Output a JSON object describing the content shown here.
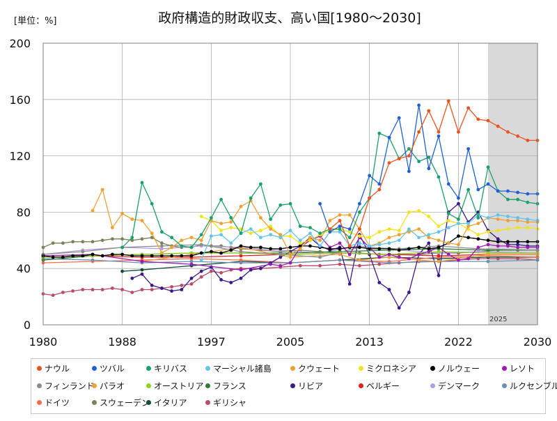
{
  "chart_data": {
    "type": "line",
    "title": "政府構造的財政収支、高い国[1980～2030]",
    "unit_label": "[単位：%]",
    "xlabel": "",
    "ylabel": "",
    "xlim": [
      1980,
      2030
    ],
    "ylim": [
      0,
      200
    ],
    "x_ticks": [
      1980,
      1988,
      1997,
      2005,
      2013,
      2022,
      2030
    ],
    "y_ticks": [
      0,
      40,
      80,
      120,
      160,
      200
    ],
    "forecast_start": 2025,
    "forecast_label": "2025",
    "grid": true,
    "legend_position": "bottom",
    "series": [
      {
        "name": "ナウル",
        "color": "#e8531f",
        "x": [
          2009,
          2010,
          2011,
          2012,
          2013,
          2014,
          2015,
          2016,
          2017,
          2018,
          2019,
          2020,
          2021,
          2022,
          2023,
          2024,
          2025,
          2026,
          2027,
          2028,
          2029,
          2030
        ],
        "values": [
          68,
          74,
          56,
          68,
          90,
          96,
          115,
          118,
          120,
          137,
          152,
          137,
          159,
          137,
          154,
          146,
          145,
          141,
          137,
          134,
          131,
          131
        ]
      },
      {
        "name": "ツバル",
        "color": "#1f5fd6",
        "x": [
          2008,
          2009,
          2010,
          2011,
          2012,
          2013,
          2014,
          2015,
          2016,
          2017,
          2018,
          2019,
          2020,
          2021,
          2022,
          2023,
          2024,
          2025,
          2026,
          2027,
          2028,
          2029,
          2030
        ],
        "values": [
          86,
          66,
          70,
          68,
          86,
          106,
          100,
          133,
          147,
          109,
          156,
          111,
          134,
          100,
          90,
          125,
          96,
          100,
          95,
          95,
          94,
          93,
          93
        ]
      },
      {
        "name": "キリバス",
        "color": "#1aa06a",
        "x": [
          1988,
          1989,
          1990,
          1991,
          1992,
          1993,
          1994,
          1995,
          1996,
          1997,
          1998,
          1999,
          2000,
          2001,
          2002,
          2003,
          2004,
          2005,
          2006,
          2007,
          2008,
          2009,
          2010,
          2011,
          2012,
          2013,
          2014,
          2015,
          2016,
          2017,
          2018,
          2019,
          2020,
          2021,
          2022,
          2023,
          2024,
          2025,
          2026,
          2027,
          2028,
          2029,
          2030
        ],
        "values": [
          55,
          62,
          101,
          86,
          66,
          62,
          56,
          55,
          64,
          76,
          89,
          76,
          65,
          90,
          100,
          75,
          85,
          86,
          70,
          69,
          65,
          68,
          68,
          62,
          80,
          90,
          136,
          133,
          118,
          125,
          116,
          119,
          105,
          79,
          75,
          96,
          76,
          112,
          95,
          89,
          89,
          87,
          86
        ]
      },
      {
        "name": "マーシャル諸島",
        "color": "#62c4ec",
        "x": [
          1996,
          1997,
          1998,
          1999,
          2000,
          2001,
          2002,
          2003,
          2004,
          2005,
          2006,
          2007,
          2008,
          2009,
          2010,
          2011,
          2012,
          2013,
          2014,
          2015,
          2016,
          2017,
          2018,
          2019,
          2020,
          2021,
          2022,
          2023,
          2024,
          2025,
          2026,
          2027,
          2028,
          2029,
          2030
        ],
        "values": [
          46,
          63,
          64,
          58,
          65,
          68,
          62,
          64,
          62,
          67,
          60,
          65,
          56,
          66,
          66,
          56,
          58,
          56,
          57,
          58,
          60,
          68,
          62,
          64,
          66,
          69,
          72,
          72,
          78,
          76,
          78,
          77,
          76,
          75,
          74
        ]
      },
      {
        "name": "クウェート",
        "color": "#f0a030",
        "x": [
          1985,
          1986,
          1987,
          1988,
          1989,
          1990,
          1991,
          1992,
          1993,
          1994,
          1995,
          1996,
          1997,
          1998,
          1999,
          2000,
          2001,
          2002,
          2003,
          2004,
          2005,
          2006,
          2007,
          2008,
          2009,
          2010,
          2011,
          2012,
          2013,
          2014,
          2015,
          2016,
          2017,
          2018,
          2019,
          2020,
          2021,
          2022,
          2023,
          2024,
          2025,
          2026,
          2027,
          2028,
          2029,
          2030
        ],
        "values": [
          81,
          96,
          69,
          79,
          75,
          74,
          65,
          51,
          55,
          60,
          62,
          60,
          74,
          72,
          73,
          84,
          88,
          76,
          68,
          64,
          50,
          54,
          62,
          60,
          74,
          78,
          78,
          68,
          56,
          58,
          62,
          64,
          66,
          68,
          62,
          60,
          58,
          57,
          70,
          72,
          76,
          75,
          74,
          74,
          73,
          73
        ]
      },
      {
        "name": "ミクロネシア",
        "color": "#f2e21c",
        "x": [
          1996,
          1997,
          1998,
          1999,
          2000,
          2001,
          2002,
          2003,
          2004,
          2005,
          2006,
          2007,
          2008,
          2009,
          2010,
          2011,
          2012,
          2013,
          2014,
          2015,
          2016,
          2017,
          2018,
          2019,
          2020,
          2021,
          2022,
          2023,
          2024,
          2025,
          2026,
          2027,
          2028,
          2029,
          2030
        ],
        "values": [
          77,
          74,
          67,
          69,
          68,
          65,
          67,
          70,
          63,
          63,
          58,
          60,
          64,
          67,
          68,
          66,
          63,
          62,
          66,
          68,
          67,
          80,
          81,
          77,
          70,
          74,
          72,
          68,
          64,
          66,
          67,
          68,
          69,
          69,
          68
        ]
      },
      {
        "name": "ノルウェー",
        "color": "#000000",
        "x": [
          1980,
          1981,
          1982,
          1983,
          1984,
          1985,
          1986,
          1987,
          1988,
          1989,
          1990,
          1991,
          1992,
          1993,
          1994,
          1995,
          1996,
          1997,
          1998,
          1999,
          2000,
          2001,
          2002,
          2003,
          2004,
          2005,
          2006,
          2007,
          2008,
          2009,
          2010,
          2011,
          2012,
          2013,
          2014,
          2015,
          2016,
          2017,
          2018,
          2019,
          2020,
          2021,
          2022,
          2023,
          2024,
          2025,
          2026,
          2027,
          2028,
          2029,
          2030
        ],
        "values": [
          49,
          48,
          48,
          49,
          49,
          50,
          49,
          50,
          50,
          49,
          49,
          49,
          49,
          49,
          49,
          49,
          51,
          52,
          51,
          53,
          56,
          55,
          55,
          54,
          54,
          55,
          56,
          56,
          55,
          54,
          54,
          55,
          55,
          54,
          54,
          54,
          53,
          54,
          55,
          54,
          55,
          58,
          63,
          62,
          61,
          60,
          59,
          59,
          59,
          59,
          59
        ]
      },
      {
        "name": "レソト",
        "color": "#9b1bb0",
        "x": [
          1980,
          1985,
          1990,
          1995,
          2000,
          2003,
          2004,
          2005,
          2006,
          2007,
          2008,
          2009,
          2010,
          2011,
          2012,
          2013,
          2014,
          2015,
          2016,
          2017,
          2018,
          2019,
          2020,
          2021,
          2022,
          2023,
          2024,
          2025,
          2026,
          2027,
          2028,
          2029,
          2030
        ],
        "values": [
          49,
          50,
          45,
          43,
          39,
          43,
          42,
          44,
          55,
          60,
          63,
          55,
          58,
          50,
          62,
          55,
          48,
          50,
          48,
          47,
          50,
          52,
          55,
          50,
          46,
          47,
          55,
          57,
          56,
          56,
          55,
          55,
          55
        ]
      },
      {
        "name": "フィンランド",
        "color": "#8c8c8c",
        "x": [
          1980,
          1984,
          1988,
          1992,
          1996,
          2000,
          2004,
          2008,
          2012,
          2016,
          2020,
          2024,
          2030
        ],
        "values": [
          50,
          52,
          55,
          56,
          57,
          52,
          50,
          48,
          55,
          54,
          56,
          54,
          53
        ]
      },
      {
        "name": "パラオ",
        "color": "#f0a040",
        "x": [
          1990,
          1995,
          2000,
          2005,
          2010,
          2012,
          2015,
          2018,
          2020,
          2022,
          2025,
          2030
        ],
        "values": [
          45,
          50,
          55,
          48,
          50,
          46,
          48,
          46,
          45,
          47,
          50,
          50
        ]
      },
      {
        "name": "オーストリア",
        "color": "#8fd020",
        "x": [
          1980,
          1985,
          1990,
          1995,
          2000,
          2005,
          2010,
          2015,
          2020,
          2025,
          2030
        ],
        "values": [
          48,
          49,
          50,
          51,
          51,
          50,
          51,
          50,
          52,
          51,
          51
        ]
      },
      {
        "name": "フランス",
        "color": "#2e7d32",
        "x": [
          1980,
          1985,
          1990,
          1995,
          2000,
          2005,
          2010,
          2015,
          2020,
          2025,
          2030
        ],
        "values": [
          46,
          49,
          50,
          51,
          51,
          51,
          52,
          53,
          54,
          53,
          53
        ]
      },
      {
        "name": "リビア",
        "color": "#3a1a8a",
        "x": [
          1989,
          1990,
          1991,
          1992,
          1993,
          1994,
          1995,
          1996,
          1997,
          1998,
          1999,
          2000,
          2001,
          2002,
          2003,
          2004,
          2005,
          2006,
          2007,
          2008,
          2009,
          2010,
          2011,
          2012,
          2013,
          2014,
          2015,
          2016,
          2017,
          2018,
          2019,
          2020,
          2021,
          2022,
          2023,
          2024,
          2025,
          2026,
          2027,
          2028,
          2029,
          2030
        ],
        "values": [
          33,
          36,
          28,
          26,
          24,
          25,
          33,
          38,
          41,
          32,
          30,
          33,
          39,
          40,
          44,
          48,
          52,
          56,
          62,
          56,
          53,
          55,
          29,
          64,
          50,
          30,
          25,
          12,
          23,
          50,
          58,
          35,
          80,
          86,
          73,
          80,
          67,
          61,
          57,
          57,
          56,
          56
        ]
      },
      {
        "name": "ベルギー",
        "color": "#e02020",
        "x": [
          1980,
          1985,
          1990,
          1995,
          2000,
          2005,
          2010,
          2015,
          2020,
          2025,
          2030
        ],
        "values": [
          48,
          49,
          48,
          48,
          49,
          50,
          51,
          50,
          49,
          50,
          50
        ]
      },
      {
        "name": "デンマーク",
        "color": "#b09ee0",
        "x": [
          1980,
          1984,
          1988,
          1992,
          1996,
          2000,
          2004,
          2008,
          2012,
          2016,
          2020,
          2024,
          2030
        ],
        "values": [
          50,
          53,
          55,
          54,
          56,
          55,
          53,
          51,
          56,
          53,
          51,
          52,
          51
        ]
      },
      {
        "name": "ルクセンブルク",
        "color": "#6a8fb0",
        "x": [
          1980,
          1985,
          1990,
          1995,
          2000,
          2005,
          2010,
          2015,
          2020,
          2025,
          2030
        ],
        "values": [
          47,
          46,
          44,
          45,
          44,
          44,
          46,
          44,
          45,
          45,
          46
        ]
      },
      {
        "name": "ドイツ",
        "color": "#f07050",
        "x": [
          1980,
          1985,
          1990,
          1995,
          2000,
          2005,
          2010,
          2015,
          2020,
          2025,
          2030
        ],
        "values": [
          44,
          45,
          46,
          47,
          46,
          44,
          46,
          45,
          48,
          49,
          48
        ]
      },
      {
        "name": "スウェーデン",
        "color": "#7f7f5a",
        "x": [
          1980,
          1981,
          1982,
          1983,
          1984,
          1985,
          1986,
          1987,
          1988,
          1989,
          1990,
          1991,
          1992,
          1993,
          1994,
          1995,
          1996,
          1997,
          1998,
          1999,
          2000,
          2002,
          2004,
          2006,
          2008,
          2010,
          2012,
          2014,
          2016,
          2018,
          2020,
          2022,
          2024,
          2026,
          2028,
          2030
        ],
        "values": [
          55,
          58,
          58,
          59,
          59,
          59,
          60,
          61,
          61,
          60,
          61,
          62,
          58,
          56,
          55,
          55,
          57,
          56,
          56,
          55,
          54,
          53,
          52,
          53,
          52,
          51,
          51,
          50,
          50,
          50,
          51,
          51,
          52,
          53,
          53,
          53
        ]
      },
      {
        "name": "イタリア",
        "color": "#0d4d3a",
        "x": [
          1988,
          1990,
          1995,
          2000,
          2005,
          2010,
          2015,
          2020,
          2025,
          2030
        ],
        "values": [
          38,
          39,
          42,
          45,
          44,
          46,
          48,
          47,
          48,
          48
        ]
      },
      {
        "name": "ギリシャ",
        "color": "#b84a6a",
        "x": [
          1980,
          1981,
          1982,
          1983,
          1984,
          1985,
          1986,
          1987,
          1988,
          1989,
          1990,
          1991,
          1992,
          1993,
          1994,
          1995,
          1996,
          1997,
          1998,
          1999,
          2000,
          2002,
          2004,
          2006,
          2008,
          2010,
          2012,
          2014,
          2016,
          2018,
          2020,
          2022,
          2024,
          2026,
          2028,
          2030
        ],
        "values": [
          22,
          21,
          23,
          24,
          25,
          25,
          25,
          26,
          25,
          23,
          25,
          25,
          26,
          27,
          28,
          29,
          34,
          38,
          37,
          39,
          40,
          40,
          41,
          42,
          42,
          43,
          42,
          43,
          44,
          45,
          45,
          46,
          47,
          47,
          47,
          46
        ]
      }
    ]
  }
}
